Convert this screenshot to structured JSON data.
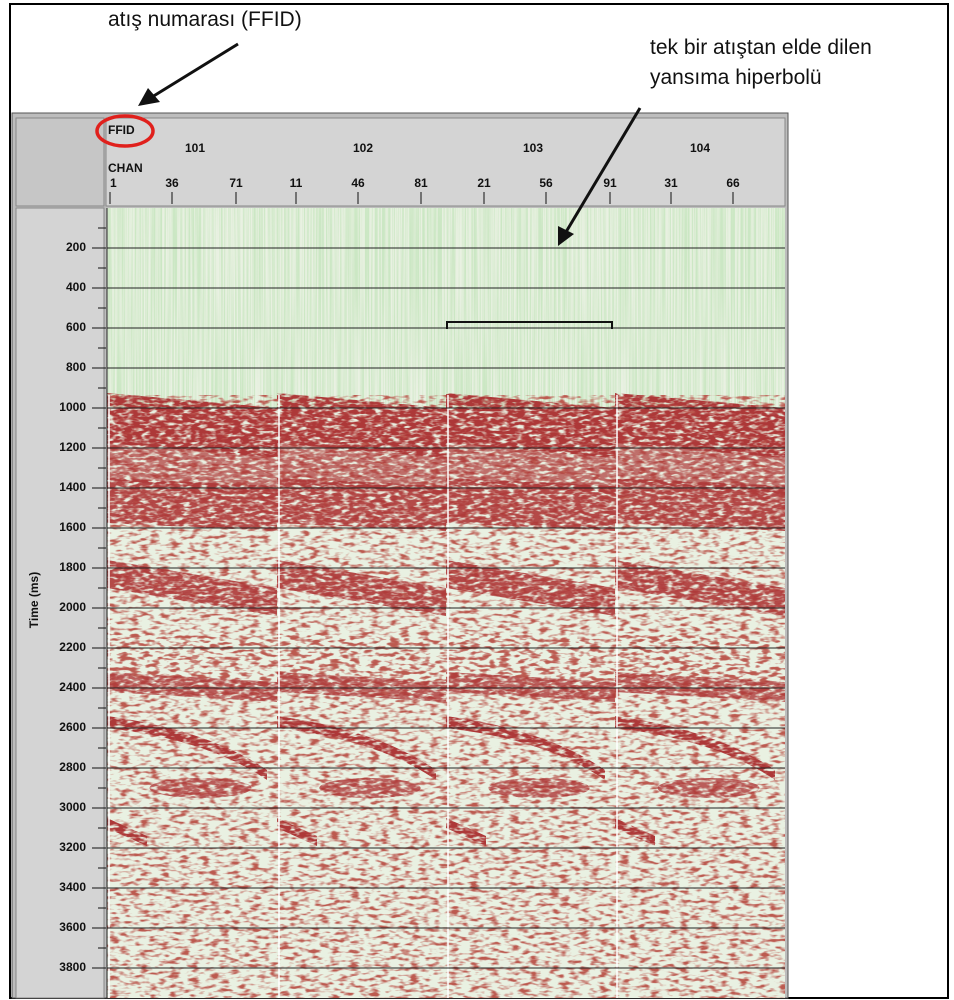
{
  "annotations": {
    "shot_number": "atış numarası (FFID)",
    "reflection": [
      "tek bir atıştan elde dilen",
      "yansıma hiperbolü"
    ]
  },
  "header": {
    "ffid_label": "FFID",
    "chan_label": "CHAN",
    "ffids": [
      "101",
      "102",
      "103",
      "104"
    ],
    "channels": [
      "1",
      "36",
      "71",
      "11",
      "46",
      "81",
      "21",
      "56",
      "91",
      "31",
      "66"
    ]
  },
  "time_axis": {
    "label": "Time (ms)",
    "ticks": [
      "200",
      "400",
      "600",
      "800",
      "1000",
      "1200",
      "1400",
      "1600",
      "1800",
      "2000",
      "2200",
      "2400",
      "2600",
      "2800",
      "3000",
      "3200",
      "3400",
      "3600",
      "3800"
    ]
  }
}
